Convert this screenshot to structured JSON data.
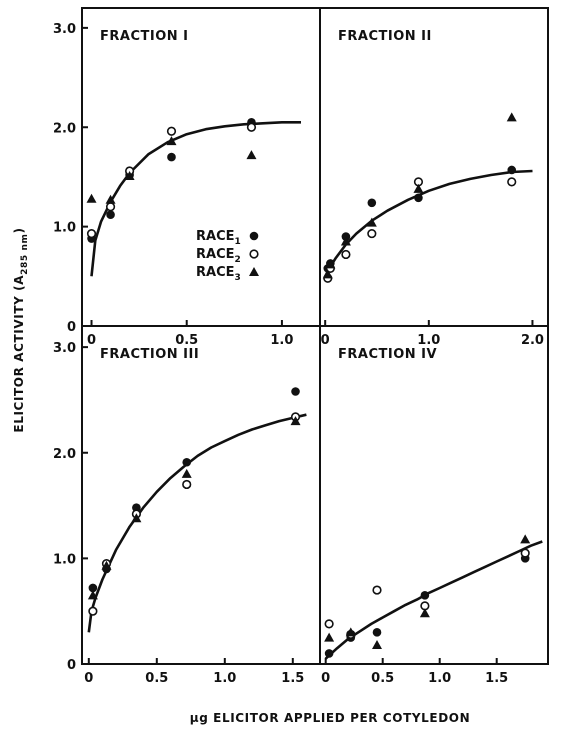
{
  "chart_data": {
    "type": "scatter",
    "ylabel_main": "ELICITOR ACTIVITY (A",
    "ylabel_sub": "285 nm",
    "ylabel_close": ")",
    "xlabel": "µg ELICITOR APPLIED PER COTYLEDON",
    "legend": [
      {
        "name": "RACE",
        "sub": "1",
        "marker": "filled-circle"
      },
      {
        "name": "RACE",
        "sub": "2",
        "marker": "open-circle"
      },
      {
        "name": "RACE",
        "sub": "3",
        "marker": "triangle"
      }
    ],
    "panels": [
      {
        "title": "FRACTION I",
        "xlim": [
          -0.05,
          1.2
        ],
        "ylim": [
          0,
          3.2
        ],
        "xticks": [
          0,
          0.5,
          1.0
        ],
        "xtick_labels": [
          "0",
          "0.5",
          "1.0"
        ],
        "yticks": [
          0,
          1.0,
          2.0,
          3.0
        ],
        "ytick_labels": [
          "0",
          "1.0",
          "2.0",
          "3.0"
        ],
        "show_xticks": true,
        "show_yticks": true,
        "series": [
          {
            "marker": "filled-circle",
            "x": [
              0,
              0.1,
              0.2,
              0.42,
              0.84
            ],
            "y": [
              0.88,
              1.12,
              1.52,
              1.7,
              2.05
            ]
          },
          {
            "marker": "open-circle",
            "x": [
              0,
              0.1,
              0.2,
              0.42,
              0.84
            ],
            "y": [
              0.93,
              1.2,
              1.56,
              1.96,
              2.0
            ]
          },
          {
            "marker": "triangle",
            "x": [
              0,
              0.1,
              0.2,
              0.42,
              0.84
            ],
            "y": [
              1.28,
              1.27,
              1.51,
              1.86,
              1.72
            ]
          }
        ],
        "curve": {
          "x": [
            0,
            0.02,
            0.05,
            0.1,
            0.15,
            0.2,
            0.3,
            0.4,
            0.5,
            0.6,
            0.7,
            0.8,
            0.9,
            1.0,
            1.1
          ],
          "y": [
            0.5,
            0.86,
            1.05,
            1.25,
            1.41,
            1.54,
            1.73,
            1.85,
            1.93,
            1.98,
            2.01,
            2.03,
            2.04,
            2.05,
            2.05
          ]
        }
      },
      {
        "title": "FRACTION II",
        "xlim": [
          -0.05,
          2.15
        ],
        "ylim": [
          0,
          3.2
        ],
        "xticks": [
          0,
          1.0,
          2.0
        ],
        "xtick_labels": [
          "0",
          "1.0",
          "2.0"
        ],
        "yticks": [],
        "ytick_labels": [],
        "show_xticks": true,
        "show_yticks": false,
        "series": [
          {
            "marker": "filled-circle",
            "x": [
              0.025,
              0.05,
              0.2,
              0.45,
              0.9,
              1.8
            ],
            "y": [
              0.58,
              0.63,
              0.9,
              1.24,
              1.29,
              1.57
            ]
          },
          {
            "marker": "open-circle",
            "x": [
              0.025,
              0.05,
              0.2,
              0.45,
              0.9,
              1.8
            ],
            "y": [
              0.48,
              0.58,
              0.72,
              0.93,
              1.45,
              1.45
            ]
          },
          {
            "marker": "triangle",
            "x": [
              0.025,
              0.05,
              0.2,
              0.45,
              0.9,
              1.8
            ],
            "y": [
              0.52,
              0.62,
              0.85,
              1.04,
              1.38,
              2.1
            ]
          }
        ],
        "curve": {
          "x": [
            0,
            0.05,
            0.1,
            0.2,
            0.3,
            0.45,
            0.6,
            0.8,
            1.0,
            1.2,
            1.4,
            1.6,
            1.8,
            2.0
          ],
          "y": [
            0.5,
            0.6,
            0.68,
            0.82,
            0.93,
            1.06,
            1.16,
            1.27,
            1.36,
            1.43,
            1.48,
            1.52,
            1.55,
            1.56
          ]
        }
      },
      {
        "title": "FRACTION III",
        "xlim": [
          -0.05,
          1.7
        ],
        "ylim": [
          0,
          3.2
        ],
        "xticks": [
          0,
          0.5,
          1.0,
          1.5
        ],
        "xtick_labels": [
          "0",
          "0.5",
          "1.0",
          "1.5"
        ],
        "yticks": [
          0,
          1.0,
          2.0,
          3.0
        ],
        "ytick_labels": [
          "0",
          "1.0",
          "2.0",
          "3.0"
        ],
        "show_xticks": true,
        "show_yticks": true,
        "series": [
          {
            "marker": "filled-circle",
            "x": [
              0.03,
              0.13,
              0.35,
              0.72,
              1.52
            ],
            "y": [
              0.72,
              0.9,
              1.48,
              1.91,
              2.58
            ]
          },
          {
            "marker": "open-circle",
            "x": [
              0.03,
              0.13,
              0.35,
              0.72,
              1.52
            ],
            "y": [
              0.5,
              0.95,
              1.42,
              1.7,
              2.34
            ]
          },
          {
            "marker": "triangle",
            "x": [
              0.03,
              0.13,
              0.35,
              0.72,
              1.52
            ],
            "y": [
              0.65,
              0.93,
              1.38,
              1.8,
              2.3
            ]
          }
        ],
        "curve": {
          "x": [
            0,
            0.02,
            0.05,
            0.1,
            0.2,
            0.3,
            0.4,
            0.5,
            0.6,
            0.7,
            0.8,
            0.9,
            1.0,
            1.1,
            1.2,
            1.3,
            1.4,
            1.5,
            1.6
          ],
          "y": [
            0.3,
            0.5,
            0.63,
            0.8,
            1.08,
            1.3,
            1.48,
            1.63,
            1.76,
            1.87,
            1.97,
            2.05,
            2.11,
            2.17,
            2.22,
            2.26,
            2.3,
            2.33,
            2.36
          ]
        }
      },
      {
        "title": "FRACTION IV",
        "xlim": [
          -0.05,
          1.95
        ],
        "ylim": [
          0,
          3.2
        ],
        "xticks": [
          0,
          0.5,
          1.0,
          1.5
        ],
        "xtick_labels": [
          "0",
          "0.5",
          "1.0",
          "1.5"
        ],
        "yticks": [],
        "ytick_labels": [],
        "show_xticks": true,
        "show_yticks": false,
        "series": [
          {
            "marker": "filled-circle",
            "x": [
              0.03,
              0.22,
              0.45,
              0.87,
              1.75
            ],
            "y": [
              0.1,
              0.25,
              0.3,
              0.65,
              1.0
            ]
          },
          {
            "marker": "open-circle",
            "x": [
              0.03,
              0.22,
              0.45,
              0.87,
              1.75
            ],
            "y": [
              0.38,
              0.28,
              0.7,
              0.55,
              1.05
            ]
          },
          {
            "marker": "triangle",
            "x": [
              0.03,
              0.22,
              0.45,
              0.87,
              1.75
            ],
            "y": [
              0.25,
              0.3,
              0.18,
              0.48,
              1.18
            ]
          }
        ],
        "curve": {
          "x": [
            0,
            0.1,
            0.2,
            0.3,
            0.4,
            0.5,
            0.6,
            0.7,
            0.8,
            0.9,
            1.0,
            1.1,
            1.2,
            1.3,
            1.4,
            1.5,
            1.6,
            1.7,
            1.8,
            1.9
          ],
          "y": [
            0.05,
            0.15,
            0.24,
            0.31,
            0.38,
            0.44,
            0.5,
            0.56,
            0.61,
            0.67,
            0.72,
            0.77,
            0.82,
            0.87,
            0.92,
            0.97,
            1.02,
            1.07,
            1.12,
            1.16
          ]
        }
      }
    ]
  }
}
